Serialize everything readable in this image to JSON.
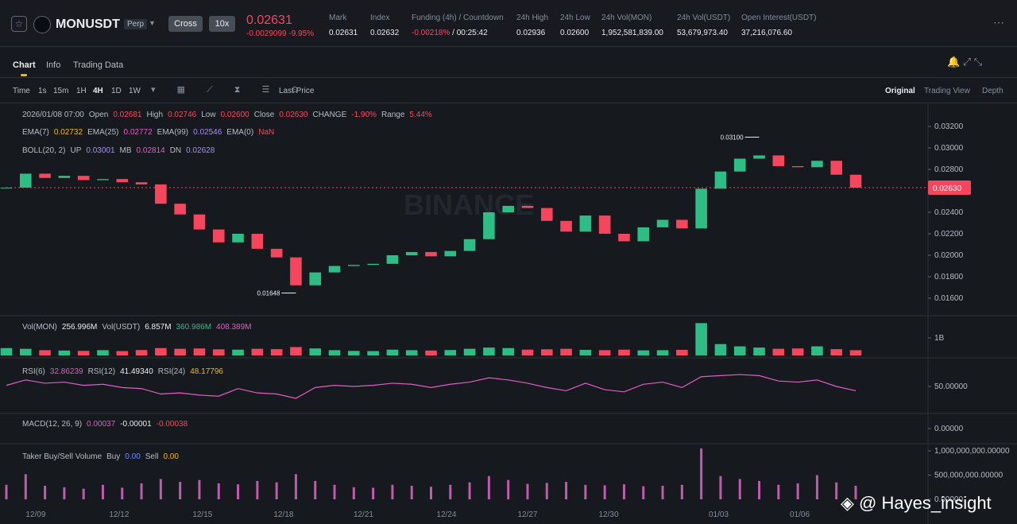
{
  "header": {
    "symbol": "MONUSDT",
    "badge": "Perp",
    "margin": "Cross",
    "leverage": "10x",
    "price": "0.02631",
    "change": "-0.0029099",
    "change_pct": "-9.95%",
    "stats": [
      {
        "label": "Mark",
        "value": "0.02631"
      },
      {
        "label": "Index",
        "value": "0.02632"
      },
      {
        "label": "Funding (4h) / Countdown",
        "value": "-0.00218%",
        "extra": "/ 00:25:42"
      },
      {
        "label": "24h High",
        "value": "0.02936"
      },
      {
        "label": "24h Low",
        "value": "0.02600"
      },
      {
        "label": "24h Vol(MON)",
        "value": "1,952,581,839.00"
      },
      {
        "label": "24h Vol(USDT)",
        "value": "53,679,973.40"
      },
      {
        "label": "Open Interest(USDT)",
        "value": "37,216,076.60"
      }
    ]
  },
  "tabs": [
    "Chart",
    "Info",
    "Trading Data"
  ],
  "toolbar": {
    "intervals": [
      "Time",
      "1s",
      "15m",
      "1H",
      "4H",
      "1D",
      "1W"
    ],
    "active": "4H",
    "price_type": "Last Price",
    "views": [
      "Original",
      "Trading View",
      "Depth"
    ]
  },
  "legend": {
    "ohlc": {
      "date": "2026/01/08 07:00",
      "items": [
        {
          "label": "Open",
          "value": "0.02681"
        },
        {
          "label": "High",
          "value": "0.02746"
        },
        {
          "label": "Low",
          "value": "0.02600"
        },
        {
          "label": "Close",
          "value": "0.02630"
        },
        {
          "label": "CHANGE",
          "value": "-1.90%"
        },
        {
          "label": "Range",
          "value": "5.44%"
        }
      ]
    },
    "ema": [
      {
        "label": "EMA(7)",
        "value": "0.02732",
        "color": "#f0b90b"
      },
      {
        "label": "EMA(25)",
        "value": "0.02772",
        "color": "#e05cc6"
      },
      {
        "label": "EMA(99)",
        "value": "0.02546",
        "color": "#a98cf0"
      },
      {
        "label": "EMA(0)",
        "value": "NaN",
        "color": "#f6465d"
      }
    ],
    "boll": [
      {
        "label": "BOLL(20, 2)",
        "value": "",
        "color": "#b7bdc6"
      },
      {
        "label": "UP",
        "value": "0.03001",
        "color": "#a98cf0"
      },
      {
        "label": "MB",
        "value": "0.02814",
        "color": "#e05cc6"
      },
      {
        "label": "DN",
        "value": "0.02628",
        "color": "#a98cf0"
      }
    ],
    "vol": [
      {
        "label": "Vol(MON)",
        "value": "256.996M",
        "color": "#eaecef"
      },
      {
        "label": "Vol(USDT)",
        "value": "6.857M",
        "color": "#eaecef"
      },
      {
        "label": "",
        "value": "360.986M",
        "color": "#2ebd85"
      },
      {
        "label": "",
        "value": "408.389M",
        "color": "#e05cc6"
      }
    ],
    "rsi": [
      {
        "label": "RSI(6)",
        "value": "32.86239",
        "color": "#e05cc6"
      },
      {
        "label": "RSI(12)",
        "value": "41.49340",
        "color": "#eaecef"
      },
      {
        "label": "RSI(24)",
        "value": "48.17796",
        "color": "#f0b90b"
      }
    ],
    "macd": [
      {
        "label": "MACD(12, 26, 9)",
        "value": "0.00037",
        "color": "#e05cc6"
      },
      {
        "label": "",
        "value": "-0.00001",
        "color": "#eaecef"
      },
      {
        "label": "",
        "value": "-0.00038",
        "color": "#f6465d"
      }
    ],
    "taker": [
      {
        "label": "Taker Buy/Sell Volume",
        "value": "",
        "color": "#848e9c"
      },
      {
        "label": "Buy",
        "value": "0.00",
        "color": "#6a8cff"
      },
      {
        "label": "Sell",
        "value": "0.00",
        "color": "#f0b90b"
      }
    ]
  },
  "chart_data": {
    "type": "candlestick",
    "xlim": [
      0,
      44
    ],
    "xticks": [
      {
        "value": 1.52,
        "label": "12/09"
      },
      {
        "value": 5.84,
        "label": "12/12"
      },
      {
        "value": 10.16,
        "label": "12/15"
      },
      {
        "value": 14.36,
        "label": "12/18"
      },
      {
        "value": 18.5,
        "label": "12/21"
      },
      {
        "value": 22.8,
        "label": "12/24"
      },
      {
        "value": 27,
        "label": "12/27"
      },
      {
        "value": 31.2,
        "label": "12/30"
      },
      {
        "value": 36.9,
        "label": "01/03"
      },
      {
        "value": 41.1,
        "label": "01/06"
      }
    ],
    "ylim": [
      0.01437,
      0.03415
    ],
    "yticks": [
      {
        "value": 0.032,
        "label": "0.03200"
      },
      {
        "value": 0.03,
        "label": "0.03000"
      },
      {
        "value": 0.028,
        "label": "0.02800"
      },
      {
        "value": 0.026,
        "label": "0.02600"
      },
      {
        "value": 0.024,
        "label": "0.02400"
      },
      {
        "value": 0.022,
        "label": "0.02200"
      },
      {
        "value": 0.02,
        "label": "0.02000"
      },
      {
        "value": 0.018,
        "label": "0.01800"
      },
      {
        "value": 0.016,
        "label": "0.01600"
      }
    ],
    "up_color": "#2ebd85",
    "down_color": "#f6465d",
    "close": [
      0.0263,
      0.0276,
      0.0272,
      0.0274,
      0.027,
      0.0271,
      0.0268,
      0.0266,
      0.0248,
      0.0238,
      0.0224,
      0.0212,
      0.022,
      0.0206,
      0.0198,
      0.0172,
      0.0184,
      0.019,
      0.0191,
      0.0192,
      0.02,
      0.0203,
      0.0199,
      0.0204,
      0.0215,
      0.024,
      0.0246,
      0.0244,
      0.0232,
      0.0222,
      0.0237,
      0.022,
      0.0213,
      0.0226,
      0.0233,
      0.0225,
      0.0262,
      0.0278,
      0.029,
      0.0293,
      0.0283,
      0.0282,
      0.0288,
      0.0275,
      0.0263
    ],
    "last": {
      "value": 0.0263,
      "label": "0.02630"
    },
    "high_marker": {
      "x": 39,
      "value": 0.031,
      "label": "0.03100"
    },
    "low_marker": {
      "x": 15,
      "value": 0.01648,
      "label": "0.01648"
    },
    "volume": {
      "ylim": [
        0,
        2140000000
      ],
      "yticks": [
        {
          "value": 1000000000,
          "label": "1B"
        }
      ],
      "values": [
        420000000,
        380000000,
        300000000,
        280000000,
        260000000,
        300000000,
        250000000,
        310000000,
        420000000,
        380000000,
        400000000,
        350000000,
        330000000,
        380000000,
        360000000,
        480000000,
        400000000,
        300000000,
        260000000,
        250000000,
        330000000,
        300000000,
        280000000,
        310000000,
        380000000,
        450000000,
        420000000,
        330000000,
        350000000,
        380000000,
        320000000,
        300000000,
        330000000,
        290000000,
        300000000,
        320000000,
        1850000000,
        650000000,
        520000000,
        450000000,
        380000000,
        400000000,
        520000000,
        360000000,
        300000000
      ]
    },
    "rsi": {
      "ylim": [
        0,
        100
      ],
      "yticks": [
        {
          "value": 50,
          "label": "50.00000"
        }
      ],
      "color": "#e05cc6",
      "values": [
        52,
        62,
        56,
        58,
        52,
        54,
        48,
        46,
        36,
        38,
        34,
        32,
        46,
        38,
        36,
        28,
        48,
        52,
        50,
        52,
        56,
        54,
        48,
        54,
        58,
        66,
        62,
        56,
        48,
        42,
        56,
        44,
        40,
        54,
        58,
        48,
        68,
        70,
        72,
        70,
        60,
        58,
        62,
        50,
        42
      ]
    },
    "macd": {
      "ylim": [
        -0.0006,
        0.0006
      ],
      "yticks": [
        {
          "value": 0,
          "label": "0.00000"
        }
      ]
    },
    "taker": {
      "ylim": [
        0,
        1100000000
      ],
      "yticks": [
        {
          "value": 1000000000,
          "label": "1,000,000,000.00000"
        },
        {
          "value": 500000000,
          "label": "500,000,000.00000"
        },
        {
          "value": 0,
          "label": "0.00000"
        }
      ],
      "color": "#c05ab0",
      "values": [
        300000000,
        520000000,
        280000000,
        250000000,
        220000000,
        300000000,
        240000000,
        330000000,
        420000000,
        360000000,
        400000000,
        330000000,
        310000000,
        380000000,
        350000000,
        520000000,
        380000000,
        300000000,
        250000000,
        240000000,
        300000000,
        280000000,
        260000000,
        300000000,
        350000000,
        480000000,
        400000000,
        320000000,
        340000000,
        360000000,
        300000000,
        290000000,
        310000000,
        270000000,
        280000000,
        300000000,
        1050000000,
        480000000,
        420000000,
        380000000,
        300000000,
        330000000,
        500000000,
        350000000,
        280000000
      ]
    }
  },
  "watermark": "BINANCE",
  "credit": "@ Hayes_insight"
}
